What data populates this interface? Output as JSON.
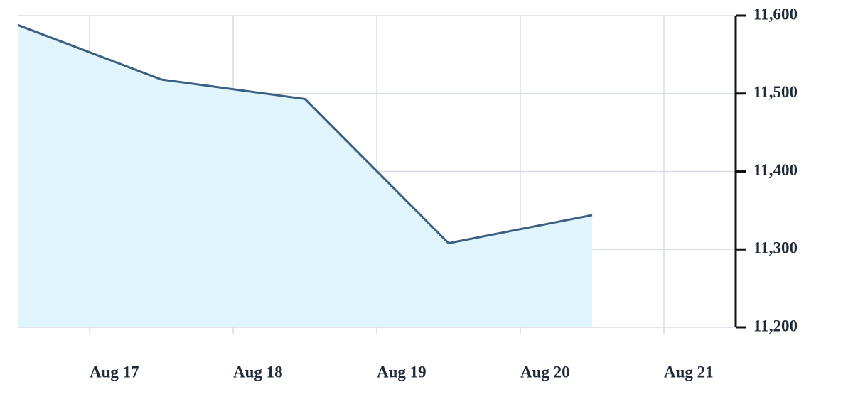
{
  "chart_data": {
    "type": "area",
    "x": [
      16.5,
      17.5,
      18.5,
      19.5,
      20.5
    ],
    "values": [
      11588,
      11518,
      11493,
      11308,
      11344
    ],
    "color": "#3b5f80",
    "fill": "#dff4fb",
    "xlim": [
      16.5,
      21.5
    ],
    "xticks": [
      {
        "value": 17,
        "label": "Aug 17"
      },
      {
        "value": 18,
        "label": "Aug 18"
      },
      {
        "value": 19,
        "label": "Aug 19"
      },
      {
        "value": 20,
        "label": "Aug 20"
      },
      {
        "value": 21,
        "label": "Aug 21"
      }
    ],
    "ylim": [
      11200,
      11600
    ],
    "yticks": [
      {
        "value": 11200,
        "label": "11,200"
      },
      {
        "value": 11300,
        "label": "11,300"
      },
      {
        "value": 11400,
        "label": "11,400"
      },
      {
        "value": 11500,
        "label": "11,500"
      },
      {
        "value": 11600,
        "label": "11,600"
      }
    ],
    "grid": true,
    "y_axis_side": "right"
  }
}
